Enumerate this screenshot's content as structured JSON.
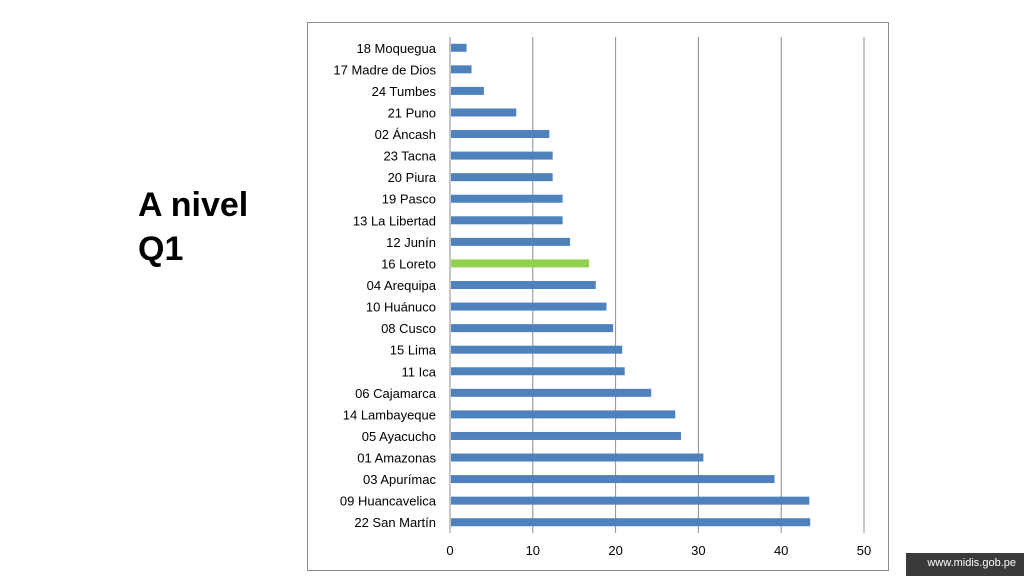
{
  "slide": {
    "title_line1": "A nivel",
    "title_line2": "Q1"
  },
  "footer": {
    "url": "www.midis.gob.pe"
  },
  "colors": {
    "bar": "#4f81bd",
    "highlight": "#92d050",
    "grid": "#8c8c8c"
  },
  "chart_data": {
    "type": "bar",
    "orientation": "horizontal",
    "categories": [
      "18 Moquegua",
      "17 Madre de Dios",
      "24 Tumbes",
      "21 Puno",
      "02 Áncash",
      "23 Tacna",
      "20 Piura",
      "19 Pasco",
      "13 La Libertad",
      "12 Junín",
      "16 Loreto",
      "04 Arequipa",
      "10 Huánuco",
      "08 Cusco",
      "15 Lima",
      "11 Ica",
      "06 Cajamarca",
      "14 Lambayeque",
      "05 Ayacucho",
      "01 Amazonas",
      "03 Apurímac",
      "09 Huancavelica",
      "22 San Martín"
    ],
    "values": [
      2,
      2.6,
      4.1,
      8,
      12,
      12.4,
      12.4,
      13.6,
      13.6,
      14.5,
      16.8,
      17.6,
      18.9,
      19.7,
      20.8,
      21.1,
      24.3,
      27.2,
      27.9,
      30.6,
      39.2,
      43.4,
      43.5
    ],
    "highlight_category": "16 Loreto",
    "xlim": [
      0,
      50
    ],
    "x_ticks": [
      0,
      10,
      20,
      30,
      40,
      50
    ],
    "grid": "vertical",
    "legend": "none",
    "title": "",
    "xlabel": "",
    "ylabel": ""
  }
}
